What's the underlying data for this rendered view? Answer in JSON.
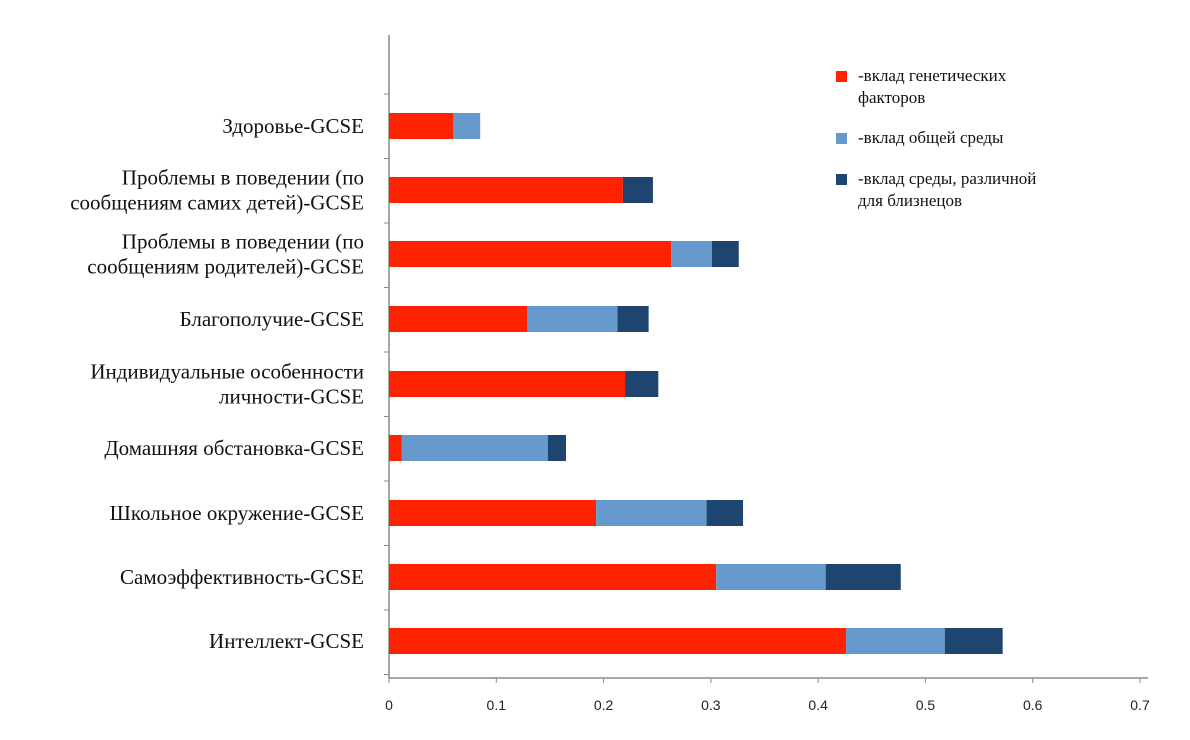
{
  "chart_data": {
    "type": "bar",
    "orientation": "horizontal",
    "stacked": true,
    "categories": [
      [
        "Здоровье-GCSE"
      ],
      [
        "Проблемы в поведении (по",
        "сообщениям самих детей)-GCSE"
      ],
      [
        "Проблемы в поведении (по",
        "сообщениям родителей)-GCSE"
      ],
      [
        "Благополучие-GCSE"
      ],
      [
        "Индивидуальные особенности",
        "личности-GCSE"
      ],
      [
        "Домашняя обстановка-GCSE"
      ],
      [
        "Школьное окружение-GCSE"
      ],
      [
        "Самоэффективность-GCSE"
      ],
      [
        "Интеллект-GCSE"
      ]
    ],
    "series": [
      {
        "name": [
          "-вклад генетических",
          "факторов"
        ],
        "color": "#ff2200",
        "values": [
          0.06,
          0.218,
          0.263,
          0.129,
          0.22,
          0.012,
          0.193,
          0.305,
          0.426
        ]
      },
      {
        "name": [
          "-вклад общей среды"
        ],
        "color": "#6699cc",
        "values": [
          0.025,
          0.0,
          0.038,
          0.084,
          0.0,
          0.136,
          0.103,
          0.102,
          0.092
        ]
      },
      {
        "name": [
          "-вклад среды, различной",
          " для близнецов"
        ],
        "color": "#1e4470",
        "values": [
          0.0,
          0.028,
          0.025,
          0.029,
          0.031,
          0.017,
          0.034,
          0.07,
          0.054
        ]
      }
    ],
    "xlim": [
      0,
      0.7
    ],
    "xticks": [
      "0",
      "0.1",
      "0.2",
      "0.3",
      "0.4",
      "0.5",
      "0.6",
      "0.7"
    ],
    "legend_position": "top-right",
    "grid": false
  }
}
